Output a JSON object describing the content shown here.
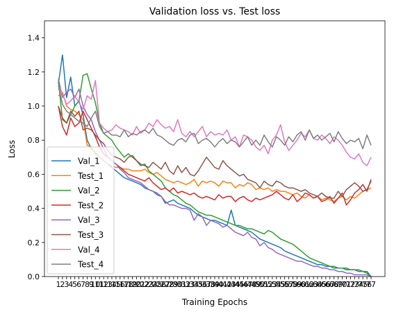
{
  "chart_data": {
    "type": "line",
    "title": "Validation loss vs. Test loss",
    "xlabel": "Training Epochs",
    "ylabel": "Loss",
    "ylim": [
      0,
      1.5
    ],
    "yticks": [
      "0.0",
      "0.2",
      "0.4",
      "0.6",
      "0.8",
      "1.0",
      "1.2",
      "1.4"
    ],
    "ytick_values": [
      0,
      0.2,
      0.4,
      0.6,
      0.8,
      1.0,
      1.2,
      1.4
    ],
    "categories": [
      "1",
      "2",
      "3",
      "4",
      "5",
      "6",
      "7",
      "8",
      "9",
      "10",
      "11",
      "12",
      "13",
      "14",
      "15",
      "16",
      "17",
      "18",
      "19",
      "20",
      "21",
      "22",
      "23",
      "24",
      "25",
      "26",
      "27",
      "28",
      "29",
      "30",
      "31",
      "32",
      "33",
      "34",
      "35",
      "36",
      "37",
      "38",
      "39",
      "40",
      "41",
      "42",
      "43",
      "44",
      "45",
      "46",
      "47",
      "48",
      "49",
      "50",
      "51",
      "52",
      "53",
      "54",
      "55",
      "56",
      "57",
      "58",
      "59",
      "60",
      "61",
      "62",
      "63",
      "64",
      "65",
      "66",
      "67",
      "68",
      "69",
      "70",
      "71",
      "72",
      "73",
      "74",
      "75",
      "76",
      "77"
    ],
    "grid": false,
    "legend_position": "lower-left",
    "series": [
      {
        "name": "Val_1",
        "color": "#1f77b4",
        "values": [
          1.13,
          1.3,
          1.05,
          1.17,
          1.0,
          1.03,
          0.95,
          0.8,
          0.75,
          0.73,
          0.7,
          0.68,
          0.66,
          0.64,
          0.62,
          0.6,
          0.58,
          0.57,
          0.56,
          0.55,
          0.54,
          0.52,
          0.51,
          0.5,
          0.48,
          0.47,
          0.43,
          0.44,
          0.45,
          0.43,
          0.42,
          0.41,
          0.4,
          0.38,
          0.36,
          0.35,
          0.34,
          0.33,
          0.33,
          0.32,
          0.31,
          0.3,
          0.39,
          0.3,
          0.29,
          0.28,
          0.27,
          0.26,
          0.24,
          0.22,
          0.21,
          0.2,
          0.19,
          0.18,
          0.17,
          0.15,
          0.14,
          0.13,
          0.12,
          0.11,
          0.1,
          0.09,
          0.08,
          0.07,
          0.07,
          0.06,
          0.06,
          0.05,
          0.05,
          0.05,
          0.04,
          0.04,
          0.04,
          0.03,
          0.03,
          0.03,
          0.0
        ]
      },
      {
        "name": "Test_1",
        "color": "#ff7f0e",
        "values": [
          1.06,
          1.08,
          1.0,
          0.98,
          0.97,
          0.95,
          0.92,
          0.77,
          0.76,
          0.72,
          0.7,
          0.68,
          0.66,
          0.65,
          0.64,
          0.64,
          0.63,
          0.63,
          0.62,
          0.62,
          0.62,
          0.63,
          0.61,
          0.6,
          0.61,
          0.59,
          0.57,
          0.56,
          0.55,
          0.56,
          0.55,
          0.54,
          0.55,
          0.57,
          0.53,
          0.56,
          0.55,
          0.56,
          0.55,
          0.53,
          0.56,
          0.55,
          0.55,
          0.52,
          0.54,
          0.53,
          0.55,
          0.54,
          0.51,
          0.52,
          0.51,
          0.52,
          0.5,
          0.51,
          0.5,
          0.5,
          0.49,
          0.48,
          0.49,
          0.47,
          0.46,
          0.48,
          0.46,
          0.47,
          0.45,
          0.46,
          0.45,
          0.44,
          0.46,
          0.47,
          0.45,
          0.47,
          0.46,
          0.48,
          0.5,
          0.51,
          0.52
        ]
      },
      {
        "name": "Val_2",
        "color": "#2ca02c",
        "values": [
          1.15,
          0.92,
          0.9,
          0.95,
          1.0,
          1.03,
          1.18,
          1.19,
          1.1,
          1.02,
          0.9,
          0.84,
          0.82,
          0.8,
          0.76,
          0.73,
          0.7,
          0.72,
          0.7,
          0.68,
          0.65,
          0.66,
          0.62,
          0.6,
          0.58,
          0.56,
          0.52,
          0.5,
          0.48,
          0.47,
          0.45,
          0.43,
          0.42,
          0.4,
          0.38,
          0.37,
          0.36,
          0.36,
          0.35,
          0.34,
          0.33,
          0.32,
          0.31,
          0.3,
          0.3,
          0.29,
          0.28,
          0.28,
          0.27,
          0.26,
          0.25,
          0.27,
          0.26,
          0.24,
          0.22,
          0.21,
          0.2,
          0.19,
          0.17,
          0.15,
          0.13,
          0.11,
          0.1,
          0.09,
          0.08,
          0.07,
          0.06,
          0.06,
          0.05,
          0.05,
          0.05,
          0.04,
          0.04,
          0.04,
          0.03,
          0.02,
          0.0
        ]
      },
      {
        "name": "Test_2",
        "color": "#d62728",
        "values": [
          1.0,
          0.88,
          0.83,
          0.93,
          0.88,
          0.9,
          0.97,
          0.92,
          0.87,
          0.82,
          0.76,
          0.72,
          0.7,
          0.68,
          0.66,
          0.64,
          0.62,
          0.6,
          0.59,
          0.58,
          0.57,
          0.56,
          0.58,
          0.55,
          0.53,
          0.51,
          0.52,
          0.5,
          0.52,
          0.49,
          0.5,
          0.49,
          0.48,
          0.49,
          0.47,
          0.46,
          0.47,
          0.46,
          0.45,
          0.48,
          0.46,
          0.47,
          0.47,
          0.44,
          0.46,
          0.47,
          0.45,
          0.44,
          0.46,
          0.45,
          0.46,
          0.47,
          0.48,
          0.5,
          0.48,
          0.46,
          0.45,
          0.48,
          0.44,
          0.46,
          0.49,
          0.48,
          0.46,
          0.47,
          0.44,
          0.45,
          0.47,
          0.43,
          0.46,
          0.49,
          0.42,
          0.45,
          0.49,
          0.51,
          0.54,
          0.5,
          0.57
        ]
      },
      {
        "name": "Val_3",
        "color": "#9467bd",
        "values": [
          1.16,
          1.05,
          1.08,
          1.1,
          1.05,
          1.1,
          1.0,
          0.95,
          0.92,
          0.85,
          0.8,
          0.75,
          0.7,
          0.68,
          0.66,
          0.63,
          0.61,
          0.58,
          0.57,
          0.56,
          0.55,
          0.53,
          0.51,
          0.5,
          0.49,
          0.47,
          0.44,
          0.42,
          0.42,
          0.41,
          0.4,
          0.4,
          0.39,
          0.33,
          0.37,
          0.35,
          0.3,
          0.33,
          0.32,
          0.31,
          0.29,
          0.3,
          0.28,
          0.26,
          0.25,
          0.24,
          0.26,
          0.23,
          0.22,
          0.18,
          0.2,
          0.17,
          0.16,
          0.14,
          0.13,
          0.12,
          0.11,
          0.1,
          0.09,
          0.09,
          0.08,
          0.07,
          0.06,
          0.06,
          0.05,
          0.05,
          0.04,
          0.04,
          0.03,
          0.03,
          0.02,
          0.02,
          0.01,
          0.01,
          0.01,
          0.01,
          0.0
        ]
      },
      {
        "name": "Test_3",
        "color": "#8c564b",
        "values": [
          1.0,
          0.93,
          0.9,
          0.97,
          0.94,
          0.97,
          0.86,
          0.87,
          0.86,
          0.83,
          0.8,
          0.78,
          0.74,
          0.71,
          0.7,
          0.69,
          0.67,
          0.7,
          0.71,
          0.68,
          0.66,
          0.65,
          0.64,
          0.67,
          0.65,
          0.63,
          0.67,
          0.62,
          0.6,
          0.65,
          0.61,
          0.64,
          0.6,
          0.59,
          0.62,
          0.66,
          0.7,
          0.67,
          0.64,
          0.63,
          0.68,
          0.65,
          0.63,
          0.61,
          0.59,
          0.6,
          0.57,
          0.56,
          0.55,
          0.52,
          0.56,
          0.54,
          0.53,
          0.56,
          0.55,
          0.53,
          0.52,
          0.52,
          0.51,
          0.5,
          0.51,
          0.49,
          0.48,
          0.47,
          0.49,
          0.47,
          0.46,
          0.46,
          0.5,
          0.47,
          0.51,
          0.53,
          0.55,
          0.53,
          0.5,
          0.51,
          0.56
        ]
      },
      {
        "name": "Val_4",
        "color": "#e377c2",
        "values": [
          1.1,
          1.07,
          1.01,
          1.03,
          1.06,
          1.02,
          0.98,
          1.06,
          1.04,
          1.15,
          0.9,
          0.87,
          0.85,
          0.86,
          0.89,
          0.87,
          0.86,
          0.85,
          0.83,
          0.88,
          0.84,
          0.86,
          0.9,
          0.88,
          0.92,
          0.89,
          0.87,
          0.88,
          0.85,
          0.92,
          0.84,
          0.82,
          0.85,
          0.82,
          0.85,
          0.88,
          0.82,
          0.85,
          0.83,
          0.84,
          0.83,
          0.86,
          0.8,
          0.82,
          0.76,
          0.83,
          0.82,
          0.8,
          0.76,
          0.74,
          0.77,
          0.72,
          0.8,
          0.83,
          0.89,
          0.79,
          0.74,
          0.77,
          0.8,
          0.84,
          0.82,
          0.86,
          0.81,
          0.8,
          0.83,
          0.81,
          0.78,
          0.82,
          0.8,
          0.77,
          0.73,
          0.7,
          0.69,
          0.72,
          0.67,
          0.65,
          0.7
        ]
      },
      {
        "name": "Test_4",
        "color": "#7f7f7f",
        "values": [
          1.12,
          1.01,
          0.97,
          0.95,
          0.93,
          0.91,
          0.9,
          0.88,
          0.93,
          0.97,
          0.88,
          0.84,
          0.85,
          0.83,
          0.83,
          0.82,
          0.86,
          0.82,
          0.84,
          0.83,
          0.85,
          0.86,
          0.84,
          0.87,
          0.83,
          0.82,
          0.8,
          0.78,
          0.77,
          0.8,
          0.81,
          0.79,
          0.83,
          0.84,
          0.78,
          0.8,
          0.81,
          0.79,
          0.76,
          0.79,
          0.81,
          0.78,
          0.8,
          0.79,
          0.76,
          0.79,
          0.82,
          0.77,
          0.8,
          0.77,
          0.83,
          0.79,
          0.76,
          0.82,
          0.8,
          0.77,
          0.82,
          0.79,
          0.83,
          0.85,
          0.8,
          0.86,
          0.81,
          0.83,
          0.8,
          0.82,
          0.84,
          0.79,
          0.85,
          0.81,
          0.78,
          0.8,
          0.79,
          0.81,
          0.75,
          0.83,
          0.77
        ]
      }
    ]
  }
}
